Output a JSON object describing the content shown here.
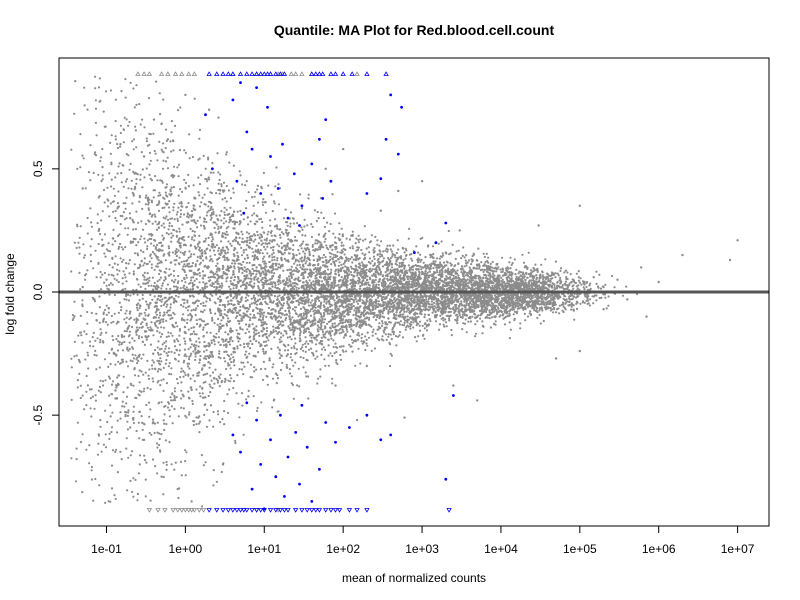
{
  "chart_data": {
    "type": "scatter",
    "title": "Quantile: MA Plot for Red.blood.cell.count",
    "xlabel": "mean of normalized counts",
    "ylabel": "log fold change",
    "x_scale": "log10",
    "xlim": [
      0.025,
      25000000
    ],
    "ylim": [
      -0.95,
      0.95
    ],
    "x_ticks": [
      {
        "value": 0.1,
        "label": "1e-01"
      },
      {
        "value": 1,
        "label": "1e+00"
      },
      {
        "value": 10,
        "label": "1e+01"
      },
      {
        "value": 100,
        "label": "1e+02"
      },
      {
        "value": 1000,
        "label": "1e+03"
      },
      {
        "value": 10000,
        "label": "1e+04"
      },
      {
        "value": 100000,
        "label": "1e+05"
      },
      {
        "value": 1000000,
        "label": "1e+06"
      },
      {
        "value": 10000000,
        "label": "1e+07"
      }
    ],
    "y_ticks": [
      {
        "value": -0.5,
        "label": "-0.5"
      },
      {
        "value": 0.0,
        "label": "0.0"
      },
      {
        "value": 0.5,
        "label": "0.5"
      }
    ],
    "reference_line": {
      "y": 0,
      "color": "#555555"
    },
    "colors": {
      "non_significant": "#8c8c8c",
      "significant": "#0000ff"
    },
    "grid": false,
    "series": [
      {
        "points": [
          [
            0.05,
            0.42
          ],
          [
            0.08,
            0.25
          ],
          [
            0.09,
            -0.2
          ],
          [
            0.12,
            0.1
          ],
          [
            0.13,
            -0.4
          ],
          [
            0.15,
            0.6
          ],
          [
            0.2,
            0.3
          ],
          [
            0.2,
            -0.55
          ],
          [
            0.3,
            0.55
          ],
          [
            0.3,
            -0.6
          ],
          [
            0.4,
            0.7
          ],
          [
            0.5,
            -0.75
          ],
          [
            0.6,
            0.62
          ],
          [
            0.8,
            -0.8
          ],
          [
            1,
            0.8
          ],
          [
            1.2,
            -0.85
          ],
          [
            0.25,
            -0.82
          ],
          [
            2,
            0.74
          ],
          [
            3,
            -0.7
          ],
          [
            0.05,
            0.02
          ],
          [
            0.07,
            -0.03
          ],
          [
            0.1,
            0.05
          ],
          [
            0.2,
            -0.08
          ],
          [
            0.5,
            0.12
          ],
          [
            0.7,
            -0.14
          ],
          [
            1.5,
            0.2
          ],
          [
            2,
            -0.22
          ],
          [
            3,
            0.18
          ],
          [
            5,
            -0.15
          ],
          [
            8,
            0.1
          ],
          [
            15,
            -0.12
          ],
          [
            40,
            0.08
          ],
          [
            100,
            -0.06
          ],
          [
            400,
            0.05
          ],
          [
            1000,
            -0.04
          ],
          [
            5000,
            0.03
          ],
          [
            20000,
            -0.02
          ],
          [
            60000,
            0.02
          ],
          [
            150000,
            0.06
          ],
          [
            200000,
            -0.07
          ],
          [
            300000,
            0.05
          ],
          [
            600000,
            0.1
          ],
          [
            700000,
            -0.1
          ],
          [
            2000000,
            0.15
          ],
          [
            10000000,
            0.21
          ],
          [
            8000000,
            0.13
          ],
          [
            1000000,
            0.04
          ],
          [
            400000,
            -0.03
          ],
          [
            100000,
            -0.24
          ],
          [
            50000,
            -0.27
          ],
          [
            30000,
            0.27
          ],
          [
            200,
            -0.3
          ],
          [
            300,
            0.33
          ],
          [
            2500,
            -0.38
          ],
          [
            1000,
            0.45
          ],
          [
            100,
            0.58
          ],
          [
            5000,
            -0.44
          ],
          [
            100000,
            0.35
          ],
          [
            2000,
            0.16
          ],
          [
            3000,
            0.25
          ],
          [
            500,
            0.41
          ],
          [
            30,
            0.34
          ],
          [
            60,
            0.5
          ],
          [
            80,
            -0.38
          ],
          [
            600,
            -0.51
          ],
          [
            150,
            -0.52
          ]
        ],
        "flagged_top": [
          0.25,
          0.3,
          0.35,
          0.5,
          0.6,
          0.75,
          0.9,
          1.1,
          1.3,
          4,
          8,
          12,
          15,
          17,
          22,
          25,
          30,
          40,
          150
        ],
        "flagged_bottom": [
          0.35,
          0.45,
          0.55,
          0.7,
          0.8,
          0.9,
          1.0,
          1.1,
          1.2,
          1.3,
          1.5,
          1.7,
          8,
          15
        ]
      },
      {
        "points": [
          [
            1.8,
            0.72
          ],
          [
            2.2,
            0.5
          ],
          [
            4,
            0.78
          ],
          [
            5,
            0.85
          ],
          [
            6,
            0.65
          ],
          [
            4.5,
            0.45
          ],
          [
            5.5,
            0.32
          ],
          [
            7,
            0.58
          ],
          [
            8,
            0.83
          ],
          [
            9,
            0.4
          ],
          [
            11,
            0.75
          ],
          [
            12,
            0.55
          ],
          [
            15,
            0.42
          ],
          [
            17,
            0.6
          ],
          [
            20,
            0.3
          ],
          [
            24,
            0.48
          ],
          [
            30,
            0.35
          ],
          [
            40,
            0.52
          ],
          [
            50,
            0.62
          ],
          [
            60,
            0.7
          ],
          [
            70,
            0.45
          ],
          [
            28,
            0.27
          ],
          [
            55,
            0.38
          ],
          [
            200,
            0.4
          ],
          [
            300,
            0.46
          ],
          [
            350,
            0.62
          ],
          [
            500,
            0.56
          ],
          [
            550,
            0.75
          ],
          [
            400,
            0.8
          ],
          [
            2000,
            0.28
          ],
          [
            1500,
            0.2
          ],
          [
            800,
            0.16
          ],
          [
            4,
            -0.58
          ],
          [
            5,
            -0.65
          ],
          [
            6,
            -0.45
          ],
          [
            7,
            -0.8
          ],
          [
            8,
            -0.52
          ],
          [
            9,
            -0.7
          ],
          [
            10,
            -0.88
          ],
          [
            12,
            -0.6
          ],
          [
            14,
            -0.75
          ],
          [
            16,
            -0.5
          ],
          [
            18,
            -0.83
          ],
          [
            20,
            -0.67
          ],
          [
            25,
            -0.57
          ],
          [
            28,
            -0.78
          ],
          [
            30,
            -0.46
          ],
          [
            35,
            -0.63
          ],
          [
            40,
            -0.85
          ],
          [
            50,
            -0.72
          ],
          [
            60,
            -0.53
          ],
          [
            80,
            -0.61
          ],
          [
            120,
            -0.55
          ],
          [
            200,
            -0.5
          ],
          [
            300,
            -0.6
          ],
          [
            400,
            -0.58
          ],
          [
            2000,
            -0.76
          ],
          [
            2500,
            -0.42
          ]
        ],
        "flagged_top": [
          2,
          2.5,
          3,
          3.5,
          4,
          5,
          6,
          7,
          8,
          9,
          10,
          11,
          12,
          14,
          16,
          18,
          40,
          45,
          50,
          55,
          70,
          80,
          100,
          130,
          200,
          350
        ],
        "flagged_bottom": [
          2,
          2.5,
          3,
          3.5,
          4,
          4.5,
          5,
          5.5,
          6,
          7,
          8,
          9,
          10,
          12,
          14,
          16,
          18,
          20,
          25,
          30,
          35,
          40,
          45,
          50,
          60,
          70,
          80,
          90,
          120,
          150,
          200,
          2200
        ]
      }
    ]
  }
}
